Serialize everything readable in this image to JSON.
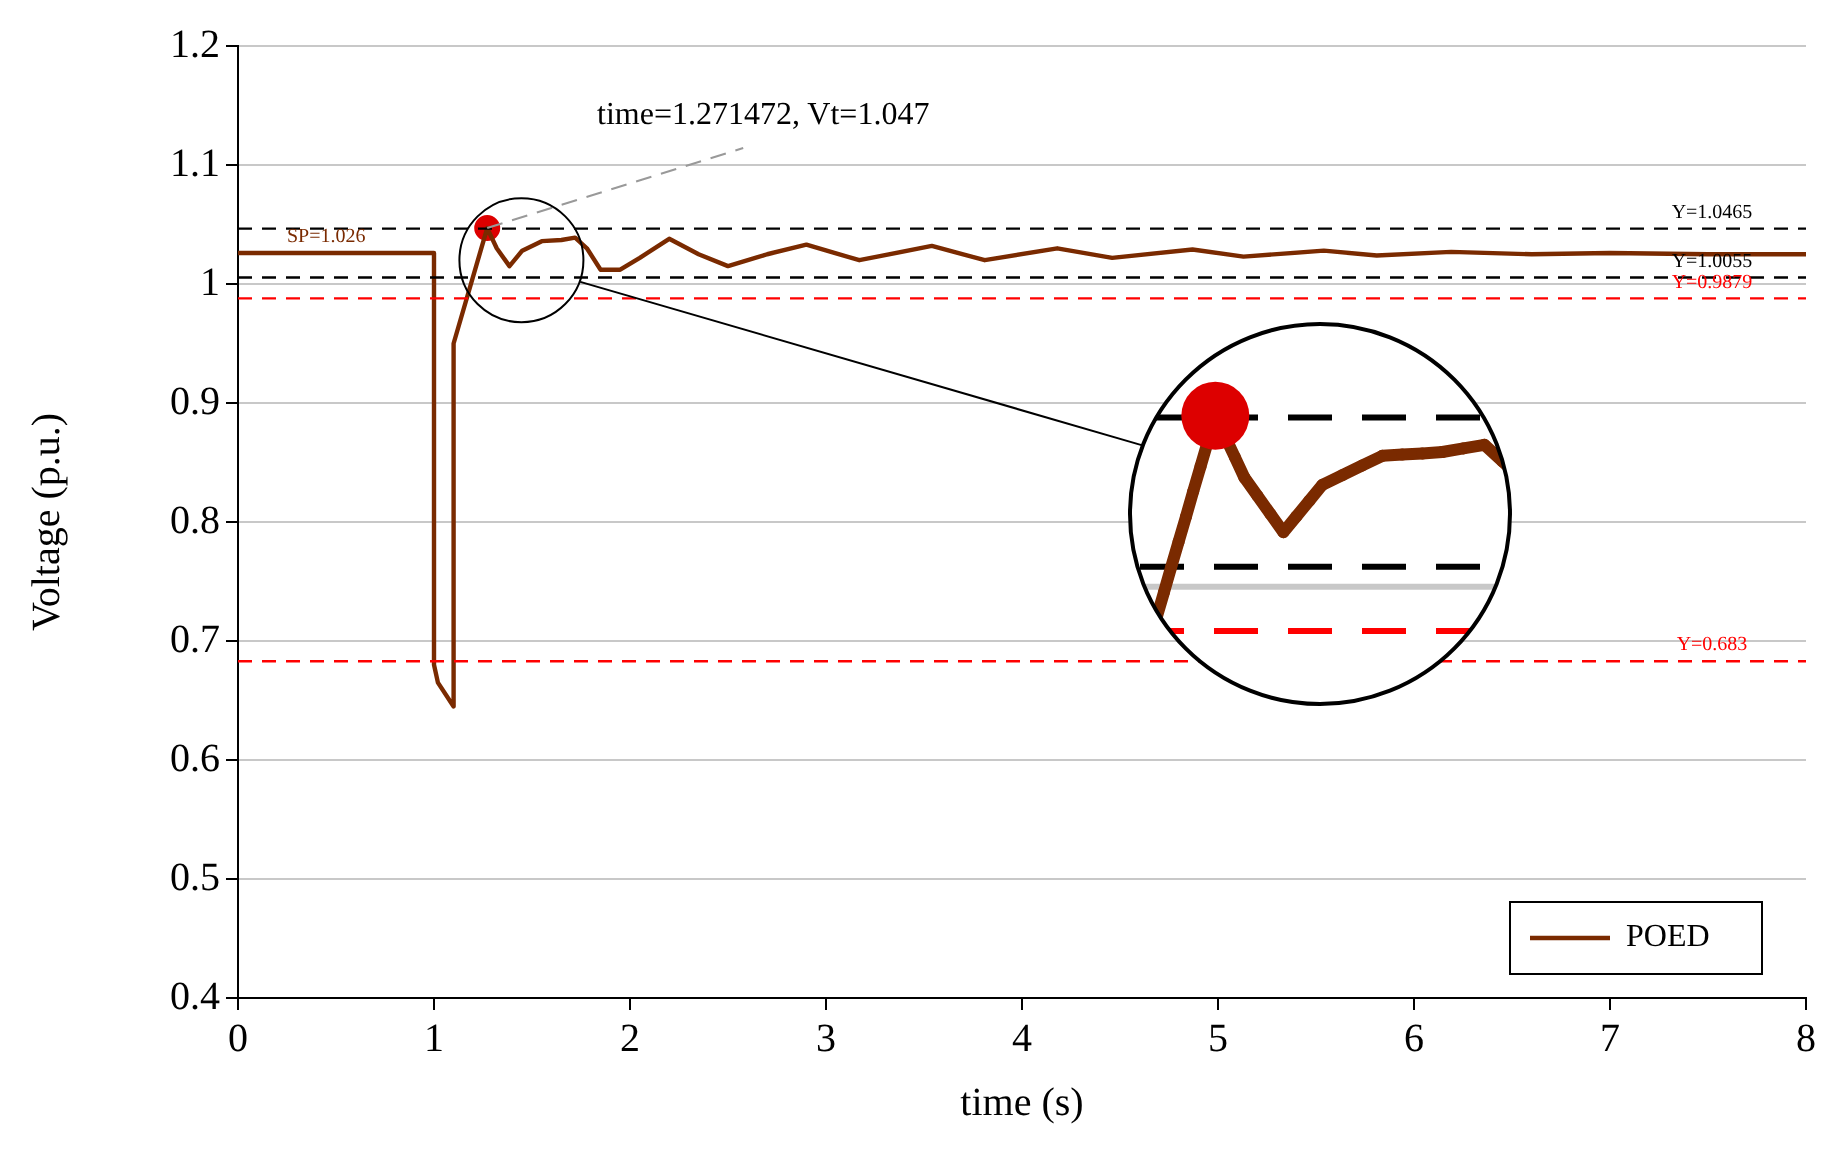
{
  "chart_data": {
    "type": "line",
    "xlabel": "time (s)",
    "ylabel": "Voltage (p.u.)",
    "xlim": [
      0,
      8
    ],
    "xticks": [
      0,
      1,
      2,
      3,
      4,
      5,
      6,
      7,
      8
    ],
    "ylim": [
      0.4,
      1.2
    ],
    "yticks": [
      0.4,
      0.5,
      0.6,
      0.7,
      0.8,
      0.9,
      1,
      1.1,
      1.2
    ],
    "grid": "y",
    "legend": "bottom right",
    "marker": "none",
    "line_style": "solid",
    "series": [
      {
        "name": "POED",
        "color": "#7a2a00",
        "x": [
          0,
          1,
          1,
          1.02,
          1.1,
          1.1,
          1.271472,
          1.32,
          1.385,
          1.45,
          1.55,
          1.65,
          1.72,
          1.78,
          1.85,
          1.95,
          2.05,
          2.2,
          2.35,
          2.5,
          2.7,
          2.9,
          3.17,
          3.54,
          3.81,
          4.18,
          4.46,
          4.87,
          5.13,
          5.54,
          5.81,
          6.19,
          6.6,
          7,
          7.5,
          8
        ],
        "values": [
          1.026,
          1.026,
          0.68,
          0.665,
          0.645,
          0.95,
          1.047,
          1.03,
          1.015,
          1.028,
          1.036,
          1.037,
          1.039,
          1.03,
          1.012,
          1.012,
          1.022,
          1.038,
          1.025,
          1.015,
          1.025,
          1.033,
          1.02,
          1.032,
          1.02,
          1.03,
          1.022,
          1.029,
          1.023,
          1.028,
          1.024,
          1.027,
          1.025,
          1.026,
          1.025,
          1.025
        ]
      },
      {
        "type": "scatter",
        "color": "#dd0000",
        "marker": "circle",
        "x": [
          1.271472
        ],
        "values": [
          1.047
        ]
      }
    ],
    "ref_lines": [
      {
        "axis": "y",
        "value": 1.0465,
        "label": "Y=1.0465",
        "color": "#000000",
        "line_style": "dashed"
      },
      {
        "axis": "y",
        "value": 1.0055,
        "label": "Y=1.0055",
        "color": "#000000",
        "line_style": "dashed"
      },
      {
        "axis": "y",
        "value": 0.9879,
        "label": "Y=0.9879",
        "color": "#ff0000",
        "line_style": "dashed"
      },
      {
        "axis": "y",
        "value": 0.683,
        "label": "Y=0.683",
        "color": "#ff0000",
        "line_style": "dashed"
      }
    ],
    "annotations": [
      {
        "text": "time=1.271472, Vt=1.047",
        "x": 1.271472,
        "y": 1.047
      },
      {
        "text": "SP=1.026",
        "x": 0.45,
        "y": 1.026
      }
    ]
  }
}
